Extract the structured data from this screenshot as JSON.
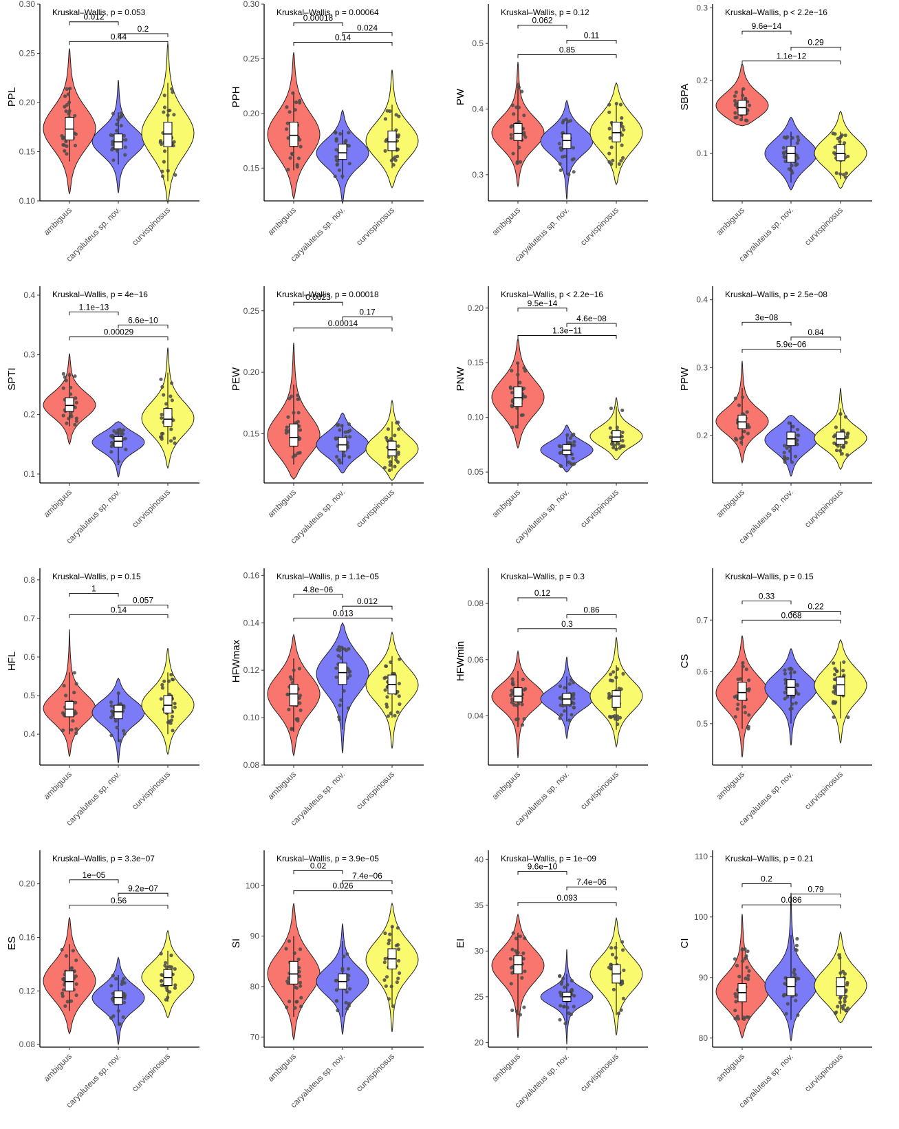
{
  "groups": [
    "ambiguus",
    "caryaluteus sp. nov.",
    "curvispinosus"
  ],
  "colors": {
    "ambiguus": "#F8766D",
    "caryaluteus sp. nov.": "#7B7BF7",
    "curvispinosus": "#FAFA6E"
  },
  "chart_data": [
    {
      "type": "violin",
      "ylabel": "PPL",
      "kruskal": "Kruskal–Wallis, p = 0.053",
      "ylim": [
        0.1,
        0.3
      ],
      "ticks": [
        "0.10",
        "0.15",
        "0.20",
        "0.25",
        "0.30"
      ],
      "stats": [
        {
          "min": 0.107,
          "max": 0.255,
          "q1": 0.162,
          "median": 0.173,
          "q3": 0.185,
          "lo": 0.14,
          "hi": 0.215
        },
        {
          "min": 0.108,
          "max": 0.223,
          "q1": 0.153,
          "median": 0.16,
          "q3": 0.168,
          "lo": 0.137,
          "hi": 0.19
        },
        {
          "min": 0.098,
          "max": 0.26,
          "q1": 0.155,
          "median": 0.168,
          "q3": 0.18,
          "lo": 0.12,
          "hi": 0.22
        }
      ],
      "pairs": [
        {
          "a": 0,
          "b": 1,
          "label": "0.012",
          "y": 0.282
        },
        {
          "a": 1,
          "b": 2,
          "label": "0.2",
          "y": 0.27
        },
        {
          "a": 0,
          "b": 2,
          "label": "0.44",
          "y": 0.262
        }
      ]
    },
    {
      "type": "violin",
      "ylabel": "PPH",
      "kruskal": "Kruskal–Wallis, p = 0.00064",
      "ylim": [
        0.12,
        0.3
      ],
      "ticks": [
        "0.15",
        "0.20",
        "0.25",
        "0.30"
      ],
      "stats": [
        {
          "min": 0.122,
          "max": 0.256,
          "q1": 0.17,
          "median": 0.18,
          "q3": 0.192,
          "lo": 0.148,
          "hi": 0.22
        },
        {
          "min": 0.118,
          "max": 0.203,
          "q1": 0.158,
          "median": 0.164,
          "q3": 0.172,
          "lo": 0.14,
          "hi": 0.185
        },
        {
          "min": 0.132,
          "max": 0.24,
          "q1": 0.166,
          "median": 0.174,
          "q3": 0.184,
          "lo": 0.15,
          "hi": 0.208
        }
      ],
      "pairs": [
        {
          "a": 0,
          "b": 1,
          "label": "0.00018",
          "y": 0.283
        },
        {
          "a": 1,
          "b": 2,
          "label": "0.024",
          "y": 0.274
        },
        {
          "a": 0,
          "b": 2,
          "label": "0.14",
          "y": 0.265
        }
      ]
    },
    {
      "type": "violin",
      "ylabel": "PW",
      "kruskal": "Kruskal–Wallis, p = 0.12",
      "ylim": [
        0.26,
        0.56
      ],
      "ticks": [
        "0.3",
        "0.4",
        "0.5"
      ],
      "stats": [
        {
          "min": 0.282,
          "max": 0.472,
          "q1": 0.352,
          "median": 0.363,
          "q3": 0.378,
          "lo": 0.315,
          "hi": 0.44
        },
        {
          "min": 0.262,
          "max": 0.413,
          "q1": 0.34,
          "median": 0.352,
          "q3": 0.362,
          "lo": 0.3,
          "hi": 0.385
        },
        {
          "min": 0.285,
          "max": 0.44,
          "q1": 0.35,
          "median": 0.364,
          "q3": 0.38,
          "lo": 0.31,
          "hi": 0.41
        }
      ],
      "pairs": [
        {
          "a": 0,
          "b": 1,
          "label": "0.062",
          "y": 0.528
        },
        {
          "a": 1,
          "b": 2,
          "label": "0.11",
          "y": 0.505
        },
        {
          "a": 0,
          "b": 2,
          "label": "0.85",
          "y": 0.483
        }
      ]
    },
    {
      "type": "violin",
      "ylabel": "SBPA",
      "kruskal": "Kruskal–Wallis, p < 2.2e−16",
      "ylim": [
        0.035,
        0.305
      ],
      "ticks": [
        "0.1",
        "0.2",
        "0.3"
      ],
      "stats": [
        {
          "min": 0.138,
          "max": 0.223,
          "q1": 0.153,
          "median": 0.163,
          "q3": 0.173,
          "lo": 0.145,
          "hi": 0.19
        },
        {
          "min": 0.05,
          "max": 0.15,
          "q1": 0.088,
          "median": 0.1,
          "q3": 0.11,
          "lo": 0.06,
          "hi": 0.13
        },
        {
          "min": 0.052,
          "max": 0.158,
          "q1": 0.09,
          "median": 0.1,
          "q3": 0.112,
          "lo": 0.065,
          "hi": 0.13
        }
      ],
      "pairs": [
        {
          "a": 0,
          "b": 1,
          "label": "9.6e−14",
          "y": 0.268
        },
        {
          "a": 1,
          "b": 2,
          "label": "0.29",
          "y": 0.246
        },
        {
          "a": 0,
          "b": 2,
          "label": "1.1e−12",
          "y": 0.227
        }
      ]
    },
    {
      "type": "violin",
      "ylabel": "SPTI",
      "kruskal": "Kruskal–Wallis, p = 4e−16",
      "ylim": [
        0.085,
        0.415
      ],
      "ticks": [
        "0.1",
        "0.2",
        "0.3",
        "0.4"
      ],
      "stats": [
        {
          "min": 0.15,
          "max": 0.302,
          "q1": 0.205,
          "median": 0.215,
          "q3": 0.228,
          "lo": 0.18,
          "hi": 0.27
        },
        {
          "min": 0.095,
          "max": 0.188,
          "q1": 0.145,
          "median": 0.155,
          "q3": 0.163,
          "lo": 0.115,
          "hi": 0.175
        },
        {
          "min": 0.11,
          "max": 0.312,
          "q1": 0.18,
          "median": 0.192,
          "q3": 0.21,
          "lo": 0.15,
          "hi": 0.27
        }
      ],
      "pairs": [
        {
          "a": 0,
          "b": 1,
          "label": "1.1e−13",
          "y": 0.372
        },
        {
          "a": 1,
          "b": 2,
          "label": "6.6e−10",
          "y": 0.35
        },
        {
          "a": 0,
          "b": 2,
          "label": "0.00029",
          "y": 0.33
        }
      ]
    },
    {
      "type": "violin",
      "ylabel": "PEW",
      "kruskal": "Kruskal–Wallis, p = 0.00018",
      "ylim": [
        0.11,
        0.27
      ],
      "ticks": [
        "0.15",
        "0.20",
        "0.25"
      ],
      "stats": [
        {
          "min": 0.113,
          "max": 0.224,
          "q1": 0.14,
          "median": 0.147,
          "q3": 0.158,
          "lo": 0.125,
          "hi": 0.19
        },
        {
          "min": 0.118,
          "max": 0.167,
          "q1": 0.136,
          "median": 0.141,
          "q3": 0.147,
          "lo": 0.125,
          "hi": 0.158
        },
        {
          "min": 0.112,
          "max": 0.177,
          "q1": 0.132,
          "median": 0.137,
          "q3": 0.144,
          "lo": 0.12,
          "hi": 0.16
        }
      ],
      "pairs": [
        {
          "a": 0,
          "b": 1,
          "label": "0.0023",
          "y": 0.257
        },
        {
          "a": 1,
          "b": 2,
          "label": "0.17",
          "y": 0.245
        },
        {
          "a": 0,
          "b": 2,
          "label": "0.00014",
          "y": 0.236
        }
      ]
    },
    {
      "type": "violin",
      "ylabel": "PNW",
      "kruskal": "Kruskal–Wallis, p < 2.2e−16",
      "ylim": [
        0.04,
        0.22
      ],
      "ticks": [
        "0.05",
        "0.10",
        "0.15",
        "0.20"
      ],
      "stats": [
        {
          "min": 0.072,
          "max": 0.172,
          "q1": 0.11,
          "median": 0.118,
          "q3": 0.128,
          "lo": 0.09,
          "hi": 0.15
        },
        {
          "min": 0.05,
          "max": 0.093,
          "q1": 0.066,
          "median": 0.07,
          "q3": 0.075,
          "lo": 0.055,
          "hi": 0.085
        },
        {
          "min": 0.061,
          "max": 0.118,
          "q1": 0.078,
          "median": 0.082,
          "q3": 0.088,
          "lo": 0.07,
          "hi": 0.11
        }
      ],
      "pairs": [
        {
          "a": 0,
          "b": 1,
          "label": "9.5e−14",
          "y": 0.2
        },
        {
          "a": 1,
          "b": 2,
          "label": "4.6e−08",
          "y": 0.186
        },
        {
          "a": 0,
          "b": 2,
          "label": "1.3e−11",
          "y": 0.175
        }
      ]
    },
    {
      "type": "violin",
      "ylabel": "PPW",
      "kruskal": "Kruskal–Wallis, p = 2.5e−08",
      "ylim": [
        0.13,
        0.42
      ],
      "ticks": [
        "0.2",
        "0.3",
        "0.4"
      ],
      "stats": [
        {
          "min": 0.16,
          "max": 0.31,
          "q1": 0.21,
          "median": 0.22,
          "q3": 0.23,
          "lo": 0.185,
          "hi": 0.27
        },
        {
          "min": 0.14,
          "max": 0.23,
          "q1": 0.185,
          "median": 0.195,
          "q3": 0.205,
          "lo": 0.16,
          "hi": 0.22
        },
        {
          "min": 0.15,
          "max": 0.27,
          "q1": 0.187,
          "median": 0.195,
          "q3": 0.205,
          "lo": 0.17,
          "hi": 0.24
        }
      ],
      "pairs": [
        {
          "a": 0,
          "b": 1,
          "label": "3e−08",
          "y": 0.367
        },
        {
          "a": 1,
          "b": 2,
          "label": "0.84",
          "y": 0.345
        },
        {
          "a": 0,
          "b": 2,
          "label": "5.9e−06",
          "y": 0.327
        }
      ]
    },
    {
      "type": "violin",
      "ylabel": "HFL",
      "kruskal": "Kruskal–Wallis, p = 0.15",
      "ylim": [
        0.32,
        0.83
      ],
      "ticks": [
        "0.4",
        "0.5",
        "0.6",
        "0.7",
        "0.8"
      ],
      "stats": [
        {
          "min": 0.342,
          "max": 0.672,
          "q1": 0.445,
          "median": 0.465,
          "q3": 0.485,
          "lo": 0.4,
          "hi": 0.56
        },
        {
          "min": 0.325,
          "max": 0.545,
          "q1": 0.44,
          "median": 0.458,
          "q3": 0.475,
          "lo": 0.38,
          "hi": 0.51
        },
        {
          "min": 0.348,
          "max": 0.623,
          "q1": 0.455,
          "median": 0.475,
          "q3": 0.5,
          "lo": 0.4,
          "hi": 0.56
        }
      ],
      "pairs": [
        {
          "a": 0,
          "b": 1,
          "label": "1",
          "y": 0.765
        },
        {
          "a": 1,
          "b": 2,
          "label": "0.057",
          "y": 0.735
        },
        {
          "a": 0,
          "b": 2,
          "label": "0.14",
          "y": 0.71
        }
      ]
    },
    {
      "type": "violin",
      "ylabel": "HFWmax",
      "kruskal": "Kruskal–Wallis, p = 1.1e−05",
      "ylim": [
        0.08,
        0.163
      ],
      "ticks": [
        "0.08",
        "0.10",
        "0.12",
        "0.14",
        "0.16"
      ],
      "stats": [
        {
          "min": 0.084,
          "max": 0.135,
          "q1": 0.105,
          "median": 0.11,
          "q3": 0.114,
          "lo": 0.094,
          "hi": 0.125
        },
        {
          "min": 0.085,
          "max": 0.14,
          "q1": 0.114,
          "median": 0.119,
          "q3": 0.123,
          "lo": 0.095,
          "hi": 0.13
        },
        {
          "min": 0.087,
          "max": 0.136,
          "q1": 0.11,
          "median": 0.114,
          "q3": 0.118,
          "lo": 0.1,
          "hi": 0.126
        }
      ],
      "pairs": [
        {
          "a": 0,
          "b": 1,
          "label": "4.8e−06",
          "y": 0.152
        },
        {
          "a": 1,
          "b": 2,
          "label": "0.012",
          "y": 0.147
        },
        {
          "a": 0,
          "b": 2,
          "label": "0.013",
          "y": 0.142
        }
      ]
    },
    {
      "type": "violin",
      "ylabel": "HFWmin",
      "kruskal": "Kruskal–Wallis, p = 0.3",
      "ylim": [
        0.0225,
        0.0925
      ],
      "ticks": [
        "0.04",
        "0.06",
        "0.08"
      ],
      "stats": [
        {
          "min": 0.025,
          "max": 0.063,
          "q1": 0.045,
          "median": 0.047,
          "q3": 0.05,
          "lo": 0.036,
          "hi": 0.056
        },
        {
          "min": 0.032,
          "max": 0.061,
          "q1": 0.044,
          "median": 0.046,
          "q3": 0.048,
          "lo": 0.038,
          "hi": 0.054
        },
        {
          "min": 0.029,
          "max": 0.068,
          "q1": 0.043,
          "median": 0.047,
          "q3": 0.049,
          "lo": 0.035,
          "hi": 0.058
        }
      ],
      "pairs": [
        {
          "a": 0,
          "b": 1,
          "label": "0.12",
          "y": 0.082
        },
        {
          "a": 1,
          "b": 2,
          "label": "0.86",
          "y": 0.076
        },
        {
          "a": 0,
          "b": 2,
          "label": "0.3",
          "y": 0.071
        }
      ]
    },
    {
      "type": "violin",
      "ylabel": "CS",
      "kruskal": "Kruskal–Wallis, p = 0.15",
      "ylim": [
        0.42,
        0.8
      ],
      "ticks": [
        "0.5",
        "0.6",
        "0.7"
      ],
      "stats": [
        {
          "min": 0.435,
          "max": 0.67,
          "q1": 0.545,
          "median": 0.56,
          "q3": 0.58,
          "lo": 0.49,
          "hi": 0.62
        },
        {
          "min": 0.458,
          "max": 0.645,
          "q1": 0.555,
          "median": 0.57,
          "q3": 0.585,
          "lo": 0.5,
          "hi": 0.61
        },
        {
          "min": 0.462,
          "max": 0.662,
          "q1": 0.555,
          "median": 0.575,
          "q3": 0.59,
          "lo": 0.51,
          "hi": 0.62
        }
      ],
      "pairs": [
        {
          "a": 0,
          "b": 1,
          "label": "0.33",
          "y": 0.737
        },
        {
          "a": 1,
          "b": 2,
          "label": "0.22",
          "y": 0.717
        },
        {
          "a": 0,
          "b": 2,
          "label": "0.068",
          "y": 0.7
        }
      ]
    },
    {
      "type": "violin",
      "ylabel": "ES",
      "kruskal": "Kruskal–Wallis, p = 3.3e−07",
      "ylim": [
        0.078,
        0.225
      ],
      "ticks": [
        "0.08",
        "0.12",
        "0.16",
        "0.20"
      ],
      "stats": [
        {
          "min": 0.088,
          "max": 0.175,
          "q1": 0.12,
          "median": 0.127,
          "q3": 0.135,
          "lo": 0.105,
          "hi": 0.155
        },
        {
          "min": 0.08,
          "max": 0.145,
          "q1": 0.11,
          "median": 0.115,
          "q3": 0.12,
          "lo": 0.095,
          "hi": 0.132
        },
        {
          "min": 0.1,
          "max": 0.165,
          "q1": 0.124,
          "median": 0.13,
          "q3": 0.136,
          "lo": 0.112,
          "hi": 0.15
        }
      ],
      "pairs": [
        {
          "a": 0,
          "b": 1,
          "label": "1e−05",
          "y": 0.203
        },
        {
          "a": 1,
          "b": 2,
          "label": "9.2e−07",
          "y": 0.193
        },
        {
          "a": 0,
          "b": 2,
          "label": "0.56",
          "y": 0.184
        }
      ]
    },
    {
      "type": "violin",
      "ylabel": "SI",
      "kruskal": "Kruskal–Wallis, p = 3.9e−05",
      "ylim": [
        68,
        107
      ],
      "ticks": [
        "70",
        "80",
        "90",
        "100"
      ],
      "stats": [
        {
          "min": 69.5,
          "max": 96.5,
          "q1": 80.5,
          "median": 82.5,
          "q3": 85,
          "lo": 74,
          "hi": 90
        },
        {
          "min": 70.5,
          "max": 92.5,
          "q1": 79.5,
          "median": 81,
          "q3": 82.5,
          "lo": 74,
          "hi": 89
        },
        {
          "min": 71,
          "max": 96.5,
          "q1": 83.5,
          "median": 85.5,
          "q3": 87.5,
          "lo": 76,
          "hi": 92
        }
      ],
      "pairs": [
        {
          "a": 0,
          "b": 1,
          "label": "0.02",
          "y": 103
        },
        {
          "a": 1,
          "b": 2,
          "label": "7.4e−06",
          "y": 101
        },
        {
          "a": 0,
          "b": 2,
          "label": "0.026",
          "y": 99
        }
      ]
    },
    {
      "type": "violin",
      "ylabel": "EI",
      "kruskal": "Kruskal–Wallis, p = 1e−09",
      "ylim": [
        19.5,
        41
      ],
      "ticks": [
        "20",
        "25",
        "30",
        "35",
        "40"
      ],
      "stats": [
        {
          "min": 20.5,
          "max": 34,
          "q1": 27.5,
          "median": 28.5,
          "q3": 29.5,
          "lo": 23,
          "hi": 32
        },
        {
          "min": 19.8,
          "max": 30.2,
          "q1": 24.5,
          "median": 25,
          "q3": 25.5,
          "lo": 22,
          "hi": 27.5
        },
        {
          "min": 20.8,
          "max": 33.6,
          "q1": 26.5,
          "median": 27.5,
          "q3": 28.5,
          "lo": 23,
          "hi": 31
        }
      ],
      "pairs": [
        {
          "a": 0,
          "b": 1,
          "label": "9.6e−10",
          "y": 38.7
        },
        {
          "a": 1,
          "b": 2,
          "label": "7.4e−06",
          "y": 37
        },
        {
          "a": 0,
          "b": 2,
          "label": "0.093",
          "y": 35.3
        }
      ]
    },
    {
      "type": "violin",
      "ylabel": "CI",
      "kruskal": "Kruskal–Wallis, p = 0.21",
      "ylim": [
        78.5,
        111
      ],
      "ticks": [
        "80",
        "90",
        "100",
        "110"
      ],
      "stats": [
        {
          "min": 80,
          "max": 100.5,
          "q1": 86,
          "median": 87.5,
          "q3": 89,
          "lo": 83,
          "hi": 95
        },
        {
          "min": 79.5,
          "max": 104,
          "q1": 87,
          "median": 88.5,
          "q3": 90,
          "lo": 83,
          "hi": 97
        },
        {
          "min": 82.5,
          "max": 97.5,
          "q1": 87,
          "median": 88.5,
          "q3": 90,
          "lo": 84,
          "hi": 94
        }
      ],
      "pairs": [
        {
          "a": 0,
          "b": 1,
          "label": "0.2",
          "y": 105.5
        },
        {
          "a": 1,
          "b": 2,
          "label": "0.79",
          "y": 103.8
        },
        {
          "a": 0,
          "b": 2,
          "label": "0.086",
          "y": 102
        }
      ]
    }
  ]
}
